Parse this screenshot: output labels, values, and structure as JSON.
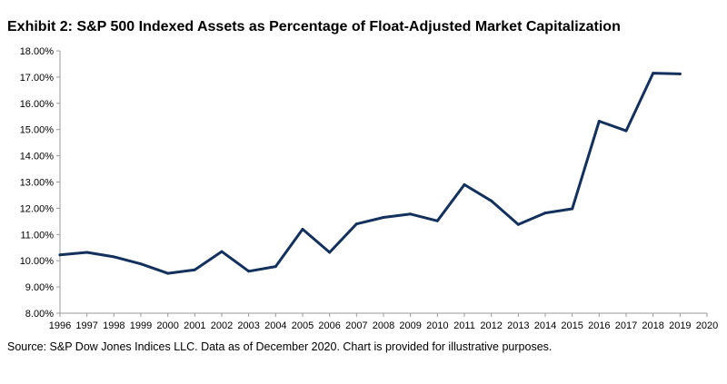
{
  "title": "Exhibit 2: S&P 500 Indexed Assets as Percentage of Float-Adjusted Market Capitalization",
  "source": "Source: S&P Dow Jones Indices LLC. Data as of December 2020. Chart is provided for illustrative purposes.",
  "colors": {
    "line": "#13315c",
    "axis": "#999999",
    "text": "#000000"
  },
  "chart_data": {
    "type": "line",
    "title": "Exhibit 2: S&P 500 Indexed Assets as Percentage of Float-Adjusted Market Capitalization",
    "xlabel": "",
    "ylabel": "",
    "categories": [
      "1996",
      "1997",
      "1998",
      "1999",
      "2000",
      "2001",
      "2002",
      "2003",
      "2004",
      "2005",
      "2006",
      "2007",
      "2008",
      "2009",
      "2010",
      "2011",
      "2012",
      "2013",
      "2014",
      "2015",
      "2016",
      "2017",
      "2018",
      "2019",
      "2020"
    ],
    "y_ticks": [
      "8.00%",
      "9.00%",
      "10.00%",
      "11.00%",
      "12.00%",
      "13.00%",
      "14.00%",
      "15.00%",
      "16.00%",
      "17.00%",
      "18.00%"
    ],
    "ylim": [
      8,
      18
    ],
    "grid": false,
    "legend": "none",
    "series": [
      {
        "values": [
          10.22,
          10.32,
          10.15,
          9.88,
          9.52,
          9.65,
          10.35,
          9.6,
          9.78,
          11.2,
          10.32,
          11.4,
          11.65,
          11.78,
          11.52,
          12.9,
          12.28,
          11.38,
          11.82,
          11.98,
          15.32,
          14.95,
          17.15,
          17.12,
          null
        ]
      }
    ]
  }
}
